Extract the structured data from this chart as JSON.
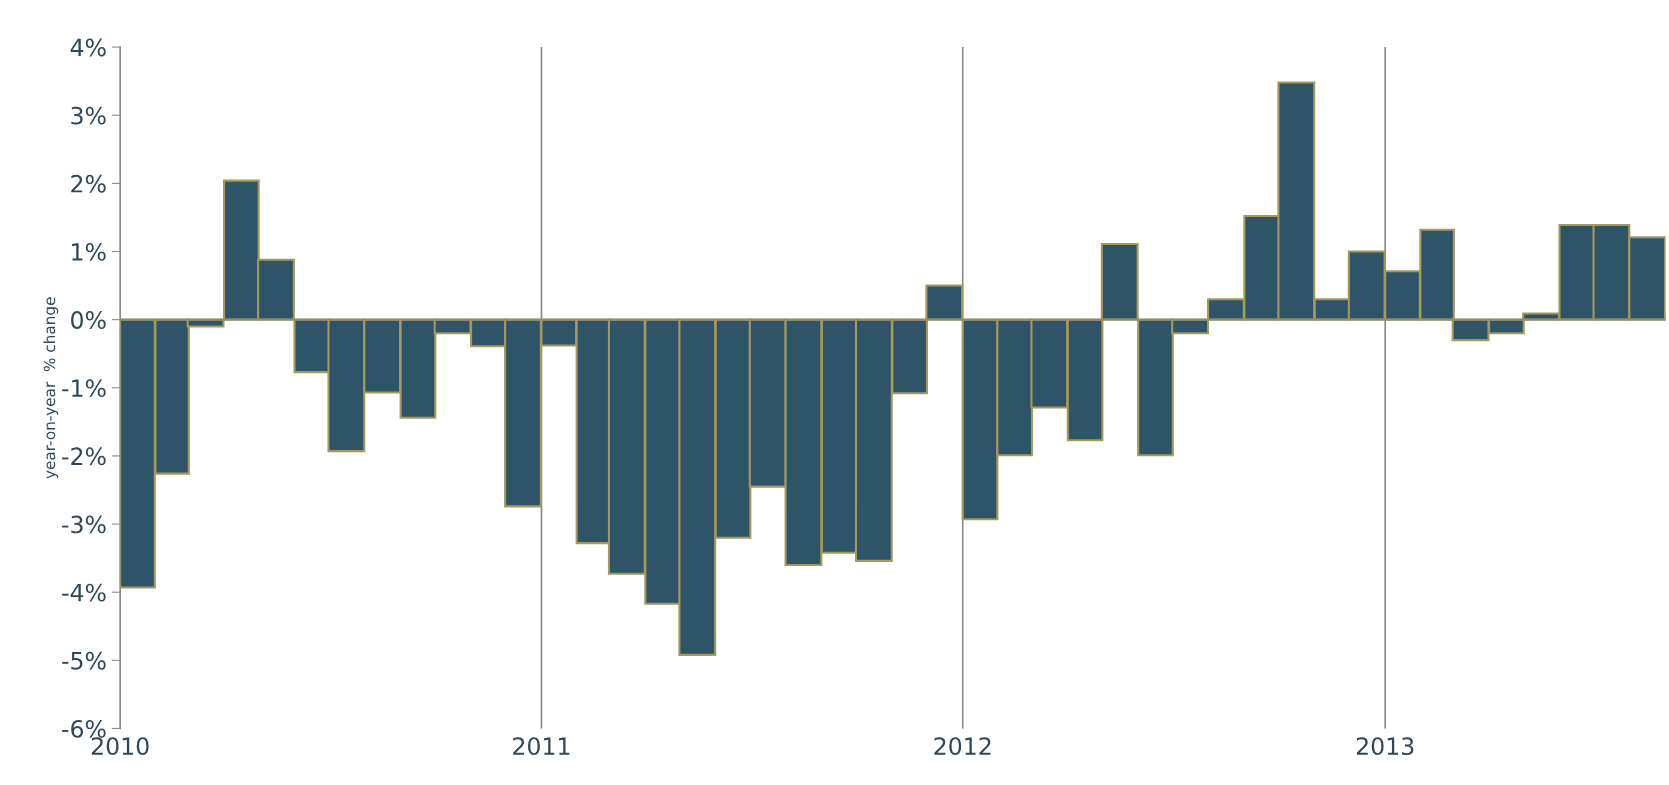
{
  "chart_data": {
    "type": "bar",
    "ylabel": "year-on-year  % change",
    "x": [
      "2010-01-16",
      "2010-02-15",
      "2010-03-16",
      "2010-04-16",
      "2010-05-16",
      "2010-06-16",
      "2010-07-16",
      "2010-08-16",
      "2010-09-16",
      "2010-10-16",
      "2010-11-16",
      "2010-12-16",
      "2011-01-16",
      "2011-02-15",
      "2011-03-16",
      "2011-04-16",
      "2011-05-16",
      "2011-06-16",
      "2011-07-16",
      "2011-08-16",
      "2011-09-16",
      "2011-10-16",
      "2011-11-16",
      "2011-12-16",
      "2012-01-16",
      "2012-02-15",
      "2012-03-16",
      "2012-04-16",
      "2012-05-16",
      "2012-06-16",
      "2012-07-16",
      "2012-08-16",
      "2012-09-16",
      "2012-10-16",
      "2012-11-16",
      "2012-12-16",
      "2013-01-16",
      "2013-02-15",
      "2013-03-16",
      "2013-04-16",
      "2013-05-16",
      "2013-06-16",
      "2013-07-16",
      "2013-08-16"
    ],
    "series": [
      {
        "color": "#2f5468",
        "values": [
          -3.93,
          -2.26,
          -0.1,
          2.04,
          0.88,
          -0.77,
          -1.93,
          -1.07,
          -1.44,
          -0.2,
          -0.39,
          -2.74,
          -0.38,
          -3.28,
          -3.73,
          -4.17,
          -4.92,
          -3.2,
          -2.45,
          -3.6,
          -3.42,
          -3.54,
          -1.08,
          0.5,
          -2.93,
          -1.99,
          -1.29,
          -1.77,
          1.11,
          -1.99,
          -0.2,
          0.3,
          1.52,
          3.48,
          0.3,
          1.0,
          0.71,
          1.32,
          -0.3,
          -0.2,
          0.09,
          1.39,
          1.39,
          1.21
        ]
      }
    ],
    "xlim": [
      "2010-01",
      "2013-09"
    ],
    "xticks": [
      {
        "value": "2010",
        "label": "2010"
      },
      {
        "value": "2011",
        "label": "2011"
      },
      {
        "value": "2012",
        "label": "2012"
      },
      {
        "value": "2013",
        "label": "2013"
      }
    ],
    "ylim": [
      -6,
      4
    ],
    "yticks": [
      {
        "value": -6,
        "label": "-6%"
      },
      {
        "value": -5,
        "label": "-5%"
      },
      {
        "value": -4,
        "label": "-4%"
      },
      {
        "value": -3,
        "label": "-3%"
      },
      {
        "value": -2,
        "label": "-2%"
      },
      {
        "value": -1,
        "label": "-1%"
      },
      {
        "value": 0,
        "label": "0%"
      },
      {
        "value": 1,
        "label": "1%"
      },
      {
        "value": 2,
        "label": "2%"
      },
      {
        "value": 3,
        "label": "3%"
      },
      {
        "value": 4,
        "label": "4%"
      }
    ],
    "ref_lines": [
      {
        "axis": "y",
        "value": 0,
        "color": "#8a8a8a"
      }
    ],
    "grid": "x"
  }
}
